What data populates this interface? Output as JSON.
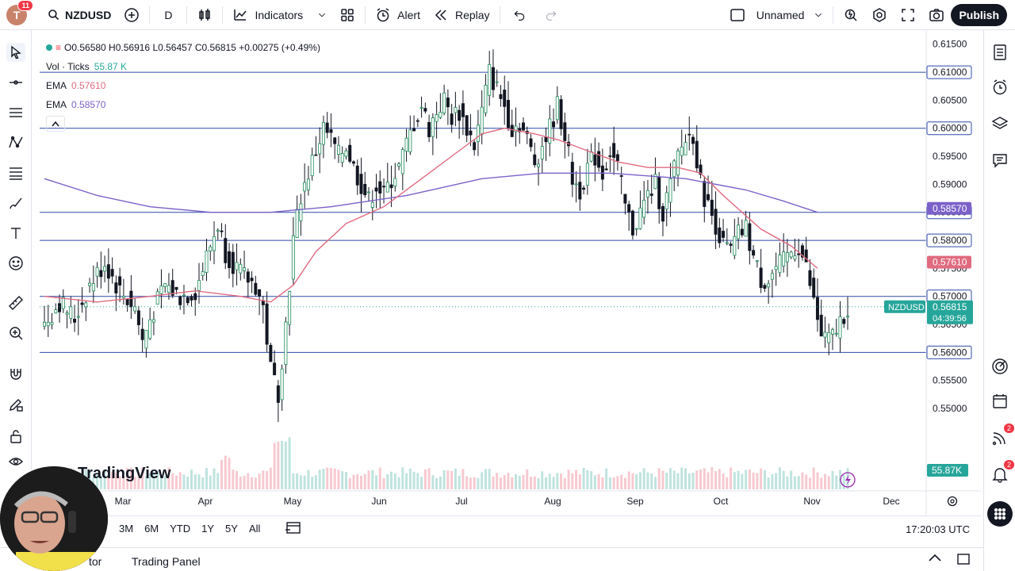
{
  "topbar": {
    "avatar_letter": "T",
    "avatar_badge": "11",
    "symbol": "NZDUSD",
    "interval": "D",
    "indicators_label": "Indicators",
    "alert_label": "Alert",
    "replay_label": "Replay",
    "layout_name": "Unnamed",
    "publish_label": "Publish"
  },
  "legend": {
    "ohlc_text": "O0.56580 H0.56916 L0.56457 C0.56815 +0.00275 (+0.49%)",
    "vol_label": "Vol · Ticks",
    "vol_value": "55.87 K",
    "ema1_label": "EMA",
    "ema1_value": "0.57610",
    "ema2_label": "EMA",
    "ema2_value": "0.58570"
  },
  "watermark": "TradingView",
  "chart_data": {
    "type": "candlestick",
    "symbol": "NZDUSD",
    "ylim": [
      0.5435,
      0.6185
    ],
    "price_ticks": [
      "0.61500",
      "0.60500",
      "0.59500",
      "0.59000",
      "0.57500",
      "0.56500",
      "0.55500",
      "0.55000"
    ],
    "x_labels": [
      "Mar",
      "Apr",
      "May",
      "Jun",
      "Jul",
      "Aug",
      "Sep",
      "Oct",
      "Nov",
      "Dec"
    ],
    "horizontal_levels": [
      0.61,
      0.6,
      0.585,
      0.58,
      0.57,
      0.56
    ],
    "level_labels": [
      "0.61000",
      "0.60000",
      "0.58500",
      "0.58000",
      "0.57000",
      "0.56000"
    ],
    "ema1_label": "0.57610",
    "ema2_label": "0.58570",
    "ema_fast_color": "#e06b80",
    "ema_slow_color": "#7b61c9",
    "current_price": 0.56815,
    "current_price_label": "0.56815",
    "current_symbol_tag": "NZDUSD",
    "countdown": "04:39:56",
    "volume_label": "55.87K",
    "anchors": [
      [
        0,
        0.565
      ],
      [
        4,
        0.569
      ],
      [
        8,
        0.566
      ],
      [
        12,
        0.572
      ],
      [
        16,
        0.576
      ],
      [
        20,
        0.571
      ],
      [
        24,
        0.568
      ],
      [
        26,
        0.562
      ],
      [
        28,
        0.566
      ],
      [
        32,
        0.572
      ],
      [
        36,
        0.57
      ],
      [
        40,
        0.571
      ],
      [
        44,
        0.579
      ],
      [
        46,
        0.583
      ],
      [
        48,
        0.578
      ],
      [
        52,
        0.574
      ],
      [
        56,
        0.572
      ],
      [
        58,
        0.568
      ],
      [
        60,
        0.557
      ],
      [
        62,
        0.553
      ],
      [
        64,
        0.565
      ],
      [
        66,
        0.58
      ],
      [
        68,
        0.588
      ],
      [
        70,
        0.592
      ],
      [
        72,
        0.596
      ],
      [
        74,
        0.6
      ],
      [
        76,
        0.598
      ],
      [
        78,
        0.595
      ],
      [
        80,
        0.597
      ],
      [
        82,
        0.593
      ],
      [
        84,
        0.59
      ],
      [
        86,
        0.587
      ],
      [
        88,
        0.59
      ],
      [
        90,
        0.588
      ],
      [
        92,
        0.591
      ],
      [
        94,
        0.593
      ],
      [
        96,
        0.597
      ],
      [
        98,
        0.601
      ],
      [
        100,
        0.604
      ],
      [
        102,
        0.6
      ],
      [
        104,
        0.603
      ],
      [
        106,
        0.605
      ],
      [
        108,
        0.602
      ],
      [
        110,
        0.603
      ],
      [
        112,
        0.6
      ],
      [
        114,
        0.597
      ],
      [
        116,
        0.603
      ],
      [
        118,
        0.61
      ],
      [
        120,
        0.607
      ],
      [
        122,
        0.604
      ],
      [
        124,
        0.6
      ],
      [
        126,
        0.601
      ],
      [
        128,
        0.598
      ],
      [
        130,
        0.594
      ],
      [
        132,
        0.597
      ],
      [
        134,
        0.6
      ],
      [
        136,
        0.604
      ],
      [
        138,
        0.599
      ],
      [
        140,
        0.591
      ],
      [
        142,
        0.589
      ],
      [
        144,
        0.593
      ],
      [
        146,
        0.595
      ],
      [
        148,
        0.592
      ],
      [
        150,
        0.596
      ],
      [
        152,
        0.593
      ],
      [
        154,
        0.586
      ],
      [
        156,
        0.582
      ],
      [
        158,
        0.585
      ],
      [
        160,
        0.588
      ],
      [
        162,
        0.59
      ],
      [
        164,
        0.585
      ],
      [
        166,
        0.59
      ],
      [
        168,
        0.595
      ],
      [
        170,
        0.598
      ],
      [
        172,
        0.599
      ],
      [
        174,
        0.59
      ],
      [
        176,
        0.586
      ],
      [
        178,
        0.583
      ],
      [
        180,
        0.579
      ],
      [
        182,
        0.578
      ],
      [
        184,
        0.581
      ],
      [
        186,
        0.582
      ],
      [
        188,
        0.577
      ],
      [
        190,
        0.573
      ],
      [
        192,
        0.573
      ],
      [
        194,
        0.575
      ],
      [
        196,
        0.576
      ],
      [
        198,
        0.578
      ],
      [
        200,
        0.579
      ],
      [
        202,
        0.575
      ],
      [
        204,
        0.569
      ],
      [
        206,
        0.563
      ],
      [
        208,
        0.562
      ],
      [
        210,
        0.564
      ],
      [
        212,
        0.567
      ],
      [
        213,
        0.568
      ]
    ],
    "ema_fast": [
      [
        0,
        0.57
      ],
      [
        14,
        0.569
      ],
      [
        28,
        0.57
      ],
      [
        40,
        0.571
      ],
      [
        52,
        0.57
      ],
      [
        60,
        0.569
      ],
      [
        66,
        0.572
      ],
      [
        72,
        0.578
      ],
      [
        80,
        0.583
      ],
      [
        90,
        0.586
      ],
      [
        100,
        0.591
      ],
      [
        110,
        0.596
      ],
      [
        116,
        0.599
      ],
      [
        122,
        0.6
      ],
      [
        130,
        0.599
      ],
      [
        136,
        0.598
      ],
      [
        144,
        0.596
      ],
      [
        152,
        0.594
      ],
      [
        160,
        0.593
      ],
      [
        168,
        0.593
      ],
      [
        174,
        0.592
      ],
      [
        180,
        0.588
      ],
      [
        190,
        0.582
      ],
      [
        198,
        0.579
      ],
      [
        205,
        0.575
      ]
    ],
    "ema_slow": [
      [
        0,
        0.591
      ],
      [
        14,
        0.588
      ],
      [
        28,
        0.586
      ],
      [
        44,
        0.585
      ],
      [
        60,
        0.585
      ],
      [
        76,
        0.586
      ],
      [
        96,
        0.588
      ],
      [
        116,
        0.591
      ],
      [
        132,
        0.592
      ],
      [
        150,
        0.592
      ],
      [
        170,
        0.591
      ],
      [
        186,
        0.589
      ],
      [
        196,
        0.587
      ],
      [
        205,
        0.585
      ]
    ]
  },
  "rangebar": {
    "ranges": [
      "3M",
      "6M",
      "YTD",
      "1Y",
      "5Y",
      "All"
    ],
    "clock": "17:20:03 UTC"
  },
  "bottom_panel": {
    "item1": "tor",
    "item2": "Trading Panel"
  },
  "rightbar": {
    "badge1": "2",
    "badge2": "2"
  },
  "icons": [
    "search-icon",
    "plus-icon",
    "candles-icon",
    "indicators-icon",
    "templates-icon",
    "alert-icon",
    "replay-icon",
    "undo-icon",
    "redo-icon",
    "checkbox-icon",
    "chevron-down-icon",
    "quick-search-icon",
    "settings-icon",
    "fullscreen-icon",
    "camera-icon"
  ]
}
